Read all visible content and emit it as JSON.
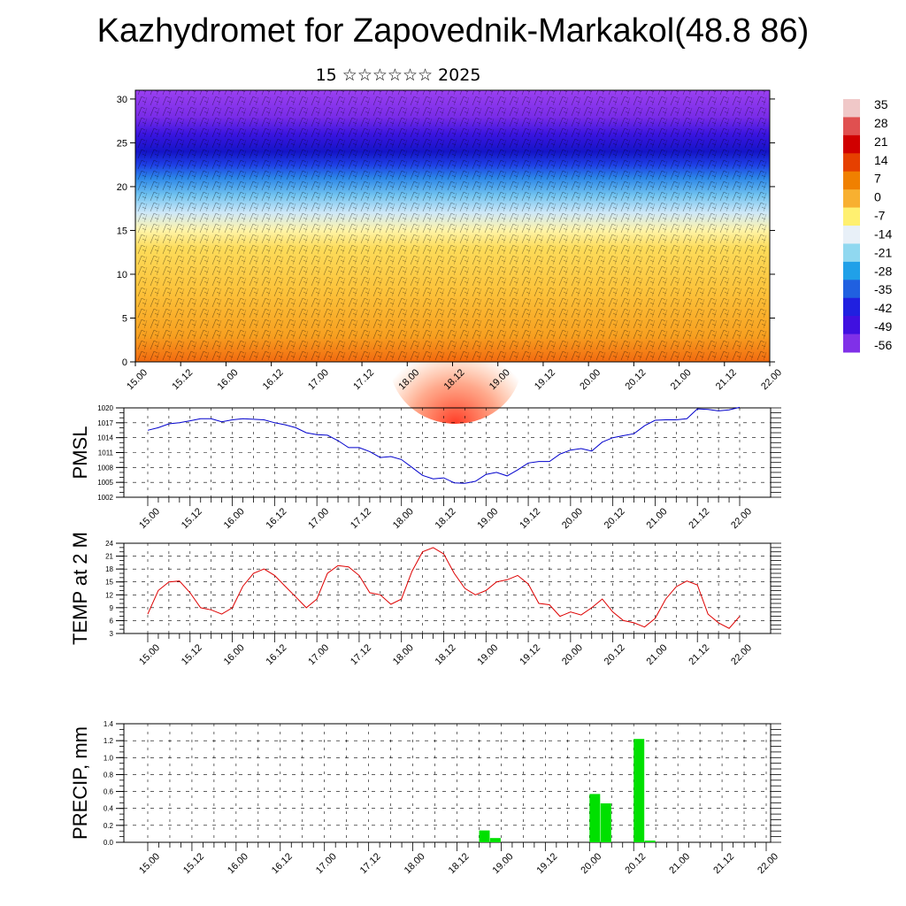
{
  "title": "Kazhydromet for Zapovednik-Markakol(48.8 86)",
  "subtitle": "15 ☆☆☆☆☆☆ 2025",
  "time_labels": [
    "15.00",
    "15.12",
    "16.00",
    "16.12",
    "17.00",
    "17.12",
    "18.00",
    "18.12",
    "19.00",
    "19.12",
    "20.00",
    "20.12",
    "21.00",
    "21.12",
    "22.00"
  ],
  "colors": {
    "pmsl": "#0000cc",
    "temp": "#dd0000",
    "precip": "#00e000"
  },
  "chart_data": [
    {
      "type": "heatmap",
      "title": "",
      "ylim": [
        0,
        31
      ],
      "yticks": [
        "0",
        "5",
        "10",
        "15",
        "20",
        "25",
        "30"
      ],
      "colorbar": {
        "labels": [
          "35",
          "28",
          "21",
          "14",
          "7",
          "0",
          "-7",
          "-14",
          "-21",
          "-28",
          "-35",
          "-42",
          "-49",
          "-56"
        ],
        "colors": [
          "#f0c8c8",
          "#e05050",
          "#d00000",
          "#e64000",
          "#f08000",
          "#f8b030",
          "#fff070",
          "#e8f0f8",
          "#90d8f0",
          "#20a0e8",
          "#2060e0",
          "#2020e0",
          "#4010e0",
          "#8030e8"
        ]
      },
      "field_colors": {
        "levels_km": [
          0,
          3,
          8,
          13,
          15,
          17,
          19,
          21,
          22.5,
          24,
          26,
          28,
          31
        ],
        "colors": [
          "#f26a10",
          "#f7a020",
          "#fcc23a",
          "#fddc5a",
          "#fff4a8",
          "#cfe8f8",
          "#72c4f0",
          "#2c86e8",
          "#1e3fe6",
          "#1414c8",
          "#3a14e0",
          "#7a2ce8",
          "#9a40f0"
        ]
      }
    },
    {
      "type": "line",
      "ylabel": "PMSL",
      "ylim": [
        1002,
        1020
      ],
      "yticks": [
        "1002",
        "1005",
        "1008",
        "1011",
        "1014",
        "1017",
        "1020"
      ],
      "x": [
        0,
        3,
        6,
        9,
        12,
        15,
        18,
        21,
        24,
        27,
        30,
        33,
        36,
        39,
        42,
        45,
        48,
        51,
        54,
        57,
        60,
        63,
        66,
        69,
        72,
        75,
        78,
        81,
        84,
        87,
        90,
        93,
        96,
        99,
        102,
        105,
        108,
        111,
        114,
        117,
        120,
        123,
        126,
        129,
        132,
        135,
        138,
        141,
        144,
        147,
        150,
        153,
        156,
        159,
        162,
        165,
        168
      ],
      "values": [
        1015.5,
        1016,
        1016.8,
        1017,
        1017.4,
        1017.8,
        1017.8,
        1017.2,
        1017.6,
        1017.8,
        1017.7,
        1017.6,
        1017,
        1016.6,
        1016,
        1015,
        1014.6,
        1014.5,
        1013.4,
        1012,
        1012,
        1011.2,
        1010,
        1010.2,
        1009.6,
        1008,
        1006.4,
        1005.7,
        1005.9,
        1004.9,
        1004.8,
        1005.2,
        1006.6,
        1007,
        1006.3,
        1007.5,
        1008.9,
        1009.2,
        1009.2,
        1010.7,
        1011.5,
        1011.8,
        1011.3,
        1013.1,
        1014,
        1014.4,
        1014.8,
        1016.4,
        1017.5,
        1017.6,
        1017.6,
        1017.8,
        1019.8,
        1019.7,
        1019.4,
        1019.6,
        1020.1
      ]
    },
    {
      "type": "line",
      "ylabel": "TEMP at 2 M",
      "ylim": [
        3,
        24
      ],
      "yticks": [
        "3",
        "6",
        "9",
        "12",
        "15",
        "18",
        "21",
        "24"
      ],
      "x": [
        0,
        3,
        6,
        9,
        12,
        15,
        18,
        21,
        24,
        27,
        30,
        33,
        36,
        39,
        42,
        45,
        48,
        51,
        54,
        57,
        60,
        63,
        66,
        69,
        72,
        75,
        78,
        81,
        84,
        87,
        90,
        93,
        96,
        99,
        102,
        105,
        108,
        111,
        114,
        117,
        120,
        123,
        126,
        129,
        132,
        135,
        138,
        141,
        144,
        147,
        150,
        153,
        156,
        159,
        162,
        165,
        168
      ],
      "values": [
        7.5,
        13,
        15,
        15.2,
        12.5,
        9,
        8.5,
        7.5,
        9,
        14,
        17,
        18,
        16.5,
        14,
        11.5,
        9,
        11,
        17,
        18.8,
        18.5,
        16.5,
        12.5,
        12,
        9.8,
        11,
        17.5,
        22,
        23,
        21.5,
        17,
        13.5,
        12,
        13,
        15,
        15.5,
        16.5,
        14.5,
        10,
        9.7,
        7,
        8,
        7.3,
        9,
        11,
        8,
        6,
        5.5,
        4.5,
        6.5,
        11,
        13.9,
        15.2,
        14.3,
        7.5,
        5.5,
        4.2,
        7
      ]
    },
    {
      "type": "bar",
      "ylabel": "PRECIP, mm",
      "ylim": [
        0,
        1.4
      ],
      "yticks": [
        "0.0",
        "0.2",
        "0.4",
        "0.6",
        "0.8",
        "1.0",
        "1.2",
        "1.4"
      ],
      "x": [
        90,
        93,
        120,
        123,
        132,
        135
      ],
      "values": [
        0.14,
        0.05,
        0.57,
        0.46,
        1.22,
        0.02
      ]
    }
  ]
}
